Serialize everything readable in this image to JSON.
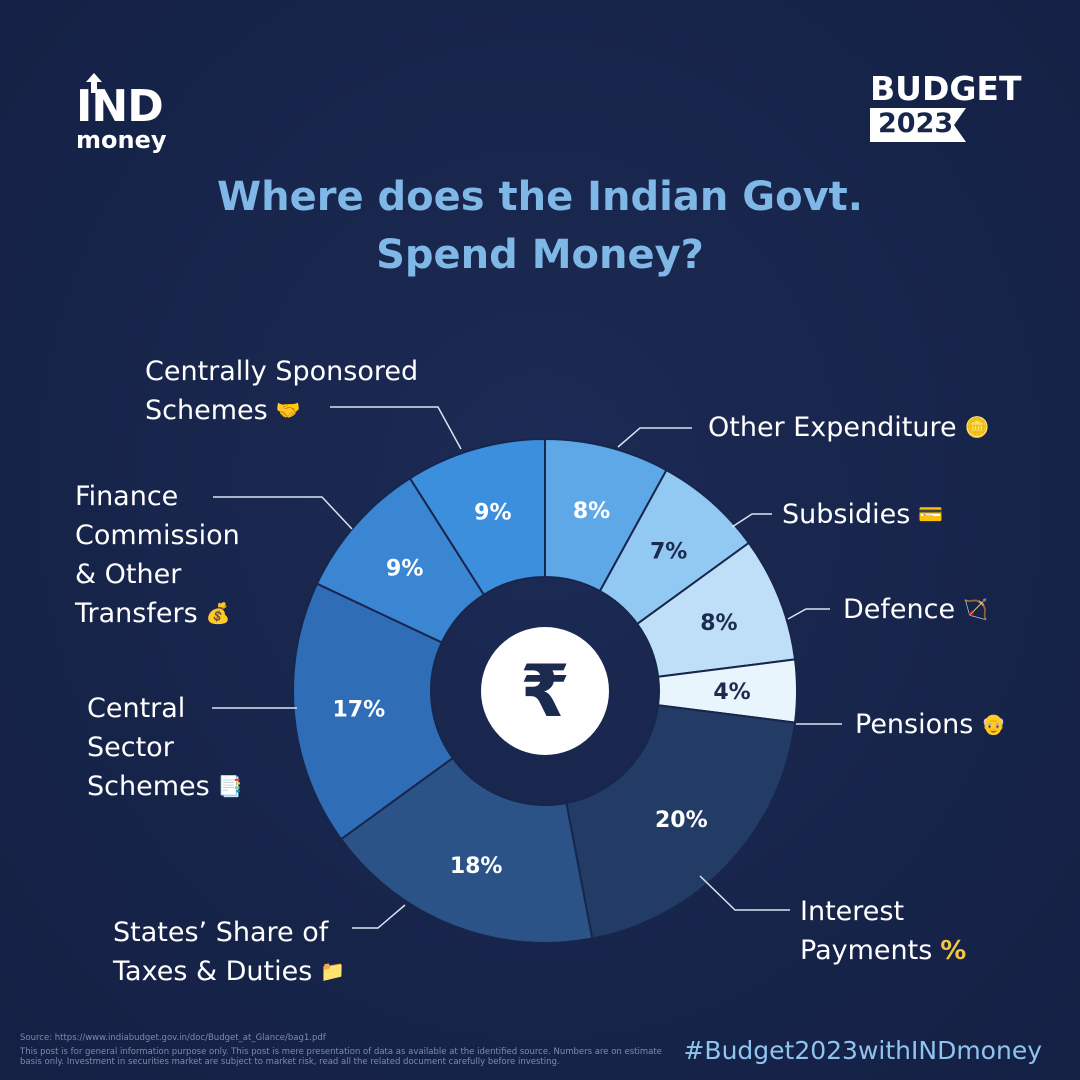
{
  "brand": {
    "logo_top": "IND",
    "logo_bottom": "money",
    "badge_title": "BUDGET",
    "badge_year": "2023"
  },
  "title_line1": "Where does the Indian Govt.",
  "title_line2": "Spend Money?",
  "center_symbol": "₹",
  "chart_data": {
    "type": "pie",
    "style": "donut",
    "categories": [
      "Other Expenditure",
      "Subsidies",
      "Defence",
      "Pensions",
      "Interest Payments",
      "States’ Share of Taxes & Duties",
      "Central Sector Schemes",
      "Finance Commission & Other Transfers",
      "Centrally Sponsored Schemes"
    ],
    "values": [
      8,
      7,
      8,
      4,
      20,
      18,
      17,
      9,
      9
    ],
    "value_labels": [
      "8%",
      "7%",
      "8%",
      "4%",
      "20%",
      "18%",
      "17%",
      "9%",
      "9%"
    ],
    "label_lines": [
      [
        "Other Expenditure"
      ],
      [
        "Subsidies"
      ],
      [
        "Defence"
      ],
      [
        "Pensions"
      ],
      [
        "Interest",
        "Payments"
      ],
      [
        "States’ Share of",
        "Taxes & Duties"
      ],
      [
        "Central",
        "Sector",
        "Schemes"
      ],
      [
        "Finance",
        "Commission",
        "& Other",
        "Transfers"
      ],
      [
        "Centrally Sponsored",
        "Schemes"
      ]
    ],
    "icons": [
      "coin-icon",
      "credit-card-icon",
      "bow-arrow-icon",
      "elder-person-icon",
      "percent-icon",
      "folder-icon",
      "document-icon",
      "money-bag-icon",
      "handshake-icon"
    ],
    "colors": [
      "#5ea8e8",
      "#92c9f2",
      "#bfdef7",
      "#e9f5fd",
      "#223c66",
      "#2c5388",
      "#2f6db7",
      "#3a86d3",
      "#3c8fdd"
    ],
    "value_label_colors": [
      "#ffffff",
      "#1b2a4f",
      "#1b2a4f",
      "#1b2a4f",
      "#ffffff",
      "#ffffff",
      "#ffffff",
      "#ffffff",
      "#ffffff"
    ]
  },
  "footer": {
    "source": "Source: https://www.indiabudget.gov.in/doc/Budget_at_Glance/bag1.pdf",
    "disclaimer": "This post is for general information purpose only. This post is mere presentation of data as available at the identified source. Numbers are on estimate basis only. Investment in securities market are subject to market risk, read all the related document carefully before investing.",
    "hashtag": "#Budget2023withINDmoney"
  }
}
